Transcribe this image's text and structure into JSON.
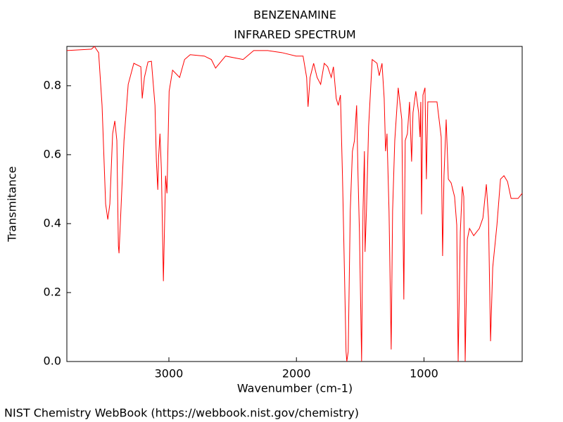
{
  "chart_data": {
    "type": "line",
    "title": "BENZENAMINE",
    "subtitle": "INFRARED SPECTRUM",
    "x_label": "Wavenumber (cm-1)",
    "y_label": "Transmitance",
    "footer": "NIST Chemistry WebBook (https://webbook.nist.gov/chemistry)",
    "color": "#ff0000",
    "xlim": [
      3800,
      230
    ],
    "ylim": [
      0,
      0.914
    ],
    "xticks": [
      3000,
      2000,
      1000
    ],
    "yticks": [
      {
        "value": 0,
        "label": "0.0"
      },
      0.2,
      0.4,
      0.6,
      0.8
    ],
    "x": [
      3800,
      3607,
      3584,
      3551,
      3524,
      3496,
      3479,
      3463,
      3441,
      3424,
      3408,
      3396,
      3391,
      3374,
      3352,
      3319,
      3275,
      3220,
      3209,
      3192,
      3164,
      3137,
      3109,
      3098,
      3087,
      3081,
      3070,
      3059,
      3043,
      3026,
      3015,
      2998,
      2971,
      2916,
      2877,
      2833,
      2722,
      2667,
      2634,
      2556,
      2418,
      2335,
      2225,
      2114,
      2003,
      1948,
      1920,
      1909,
      1893,
      1865,
      1838,
      1810,
      1782,
      1755,
      1727,
      1710,
      1688,
      1672,
      1655,
      1639,
      1622,
      1611,
      1605,
      1594,
      1578,
      1561,
      1545,
      1528,
      1517,
      1506,
      1489,
      1478,
      1467,
      1462,
      1451,
      1434,
      1406,
      1368,
      1351,
      1329,
      1312,
      1301,
      1290,
      1285,
      1274,
      1257,
      1246,
      1229,
      1202,
      1174,
      1158,
      1147,
      1130,
      1113,
      1097,
      1086,
      1064,
      1042,
      1031,
      1025,
      1019,
      1008,
      992,
      981,
      970,
      942,
      898,
      865,
      854,
      843,
      826,
      809,
      787,
      760,
      743,
      732,
      715,
      699,
      688,
      677,
      660,
      643,
      610,
      566,
      538,
      511,
      494,
      478,
      461,
      428,
      400,
      373,
      345,
      317,
      262,
      230
    ],
    "values": [
      0.902,
      0.906,
      0.914,
      0.896,
      0.743,
      0.457,
      0.412,
      0.457,
      0.661,
      0.698,
      0.641,
      0.335,
      0.314,
      0.457,
      0.641,
      0.804,
      0.865,
      0.855,
      0.763,
      0.824,
      0.869,
      0.871,
      0.743,
      0.58,
      0.498,
      0.59,
      0.661,
      0.559,
      0.233,
      0.539,
      0.488,
      0.784,
      0.845,
      0.824,
      0.876,
      0.89,
      0.886,
      0.876,
      0.851,
      0.886,
      0.876,
      0.902,
      0.902,
      0.896,
      0.886,
      0.886,
      0.824,
      0.739,
      0.824,
      0.865,
      0.824,
      0.804,
      0.865,
      0.855,
      0.824,
      0.855,
      0.763,
      0.743,
      0.773,
      0.539,
      0.233,
      0.029,
      0,
      0.029,
      0.437,
      0.61,
      0.641,
      0.743,
      0.539,
      0.376,
      0,
      0.437,
      0.61,
      0.318,
      0.437,
      0.682,
      0.876,
      0.865,
      0.829,
      0.865,
      0.763,
      0.61,
      0.661,
      0.59,
      0.437,
      0.035,
      0.437,
      0.641,
      0.794,
      0.702,
      0.18,
      0.641,
      0.661,
      0.753,
      0.58,
      0.722,
      0.784,
      0.722,
      0.651,
      0.753,
      0.427,
      0.773,
      0.794,
      0.529,
      0.753,
      0.753,
      0.753,
      0.651,
      0.306,
      0.539,
      0.702,
      0.529,
      0.518,
      0.478,
      0.396,
      0,
      0.376,
      0.508,
      0.478,
      0,
      0.355,
      0.386,
      0.365,
      0.386,
      0.416,
      0.514,
      0.416,
      0.059,
      0.273,
      0.396,
      0.529,
      0.539,
      0.522,
      0.473,
      0.473,
      0.488
    ]
  }
}
